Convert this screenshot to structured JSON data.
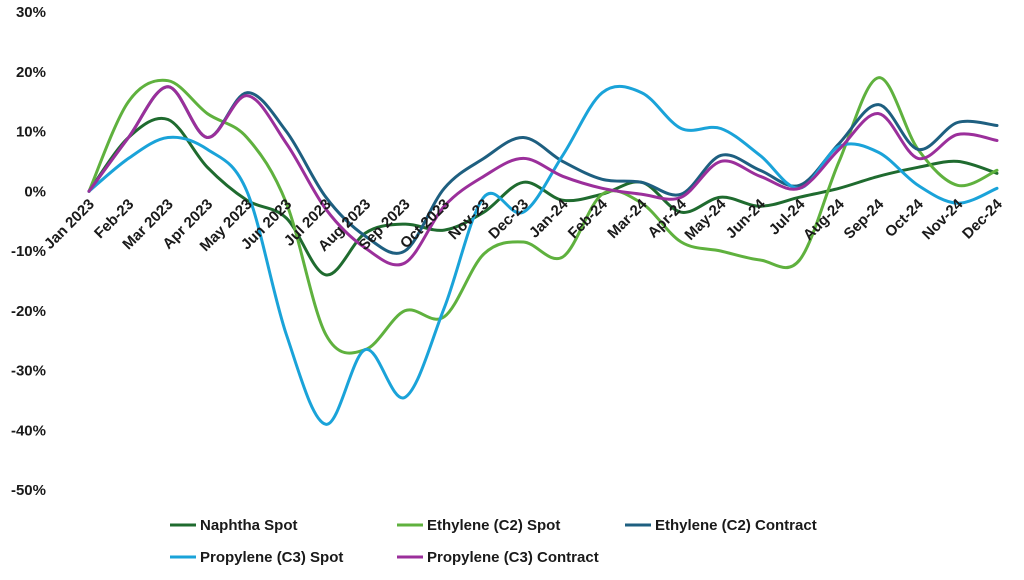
{
  "chart_data": {
    "type": "line",
    "title": "",
    "xlabel": "",
    "ylabel": "",
    "ylim": [
      -50,
      30
    ],
    "yticks": [
      "30%",
      "20%",
      "10%",
      "0%",
      "-10%",
      "-20%",
      "-30%",
      "-40%",
      "-50%"
    ],
    "ytick_values": [
      30,
      20,
      10,
      0,
      -10,
      -20,
      -30,
      -40,
      -50
    ],
    "grid": false,
    "legend_position": "bottom",
    "categories": [
      "Jan 2023",
      "Feb-23",
      "Mar 2023",
      "Apr 2023",
      "May 2023",
      "Jun 2023",
      "Jul 2023",
      "Aug 2023",
      "Sep 2023",
      "Oct 2023",
      "Nov-23",
      "Dec-23",
      "Jan-24",
      "Feb-24",
      "Mar-24",
      "Apr-24",
      "May-24",
      "Jun-24",
      "Jul-24",
      "Aug-24",
      "Sep-24",
      "Oct-24",
      "Nov-24",
      "Dec-24"
    ],
    "series": [
      {
        "name": "Naphtha Spot",
        "color": "#1f6b2f",
        "values": [
          0,
          9,
          12,
          4,
          -1.5,
          -4.5,
          -14,
          -7,
          -5.5,
          -6.5,
          -3.5,
          1.5,
          -1.5,
          -0.5,
          1.5,
          -3.5,
          -1,
          -2.5,
          -1,
          0.5,
          2.5,
          4,
          5,
          3
        ]
      },
      {
        "name": "Ethylene (C2) Spot",
        "color": "#5fb13e",
        "values": [
          0,
          15,
          18.5,
          13,
          9,
          -2,
          -24,
          -26.5,
          -20,
          -21,
          -10.5,
          -8.5,
          -11,
          -0.5,
          -2,
          -8.5,
          -10,
          -11.5,
          -11.5,
          5,
          19,
          7,
          1,
          3.5
        ]
      },
      {
        "name": "Ethylene (C2) Contract",
        "color": "#1e5f80",
        "values": [
          0,
          9,
          17.5,
          9,
          16.5,
          10,
          -1,
          -7.5,
          -10,
          0.5,
          5.5,
          9,
          5,
          2,
          1.5,
          -0.5,
          6,
          3.5,
          1,
          8,
          14.5,
          7,
          11.5,
          11
        ]
      },
      {
        "name": "Propylene (C3) Spot",
        "color": "#1aa3d9",
        "values": [
          0,
          5.5,
          9,
          7,
          0,
          -24,
          -39,
          -26.5,
          -34.5,
          -19.5,
          -1,
          -3.5,
          6,
          16.5,
          16.5,
          10.5,
          10.5,
          6,
          0.5,
          7.5,
          6.5,
          1,
          -2,
          0.5
        ]
      },
      {
        "name": "Propylene (C3) Contract",
        "color": "#9b2f9b",
        "values": [
          0,
          9,
          17.5,
          9,
          16,
          8,
          -3,
          -9.5,
          -12,
          -2.5,
          2.5,
          5.5,
          2.5,
          0.5,
          -0.5,
          -1,
          5,
          2.5,
          0.5,
          7,
          13,
          5.5,
          9.5,
          8.5
        ]
      }
    ]
  }
}
